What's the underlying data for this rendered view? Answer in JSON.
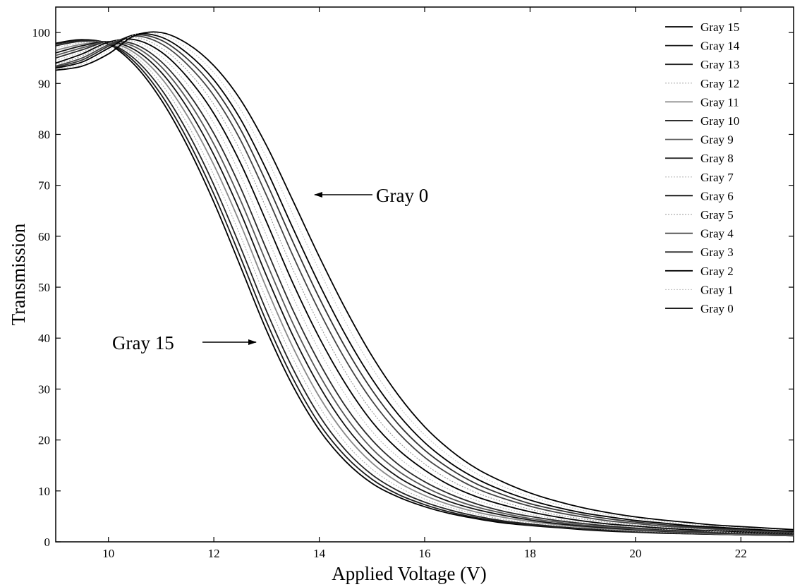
{
  "chart_data": {
    "type": "line",
    "title": "",
    "xlabel": "Applied Voltage (V)",
    "ylabel": "Transmission",
    "xlim": [
      9,
      23
    ],
    "ylim": [
      0,
      105
    ],
    "x_ticks": [
      10,
      12,
      14,
      16,
      18,
      20,
      22
    ],
    "y_ticks": [
      0,
      10,
      20,
      30,
      40,
      50,
      60,
      70,
      80,
      90,
      100
    ],
    "grid": false,
    "legend_position": "top-right",
    "x": [
      9,
      9.5,
      10,
      10.5,
      11,
      11.5,
      12,
      12.5,
      13,
      13.5,
      14,
      14.5,
      15,
      15.5,
      16,
      16.5,
      17,
      17.5,
      18,
      18.5,
      19,
      19.5,
      20,
      20.5,
      21,
      21.5,
      22,
      22.5,
      23
    ],
    "series": [
      {
        "name": "Gray 15",
        "color": "#000000",
        "values": [
          97.9,
          98.6,
          97.7,
          93.6,
          86.8,
          77.7,
          66.7,
          54.2,
          41.5,
          30.6,
          22.0,
          15.8,
          11.5,
          8.8,
          6.9,
          5.5,
          4.5,
          3.7,
          3.2,
          2.8,
          2.4,
          2.1,
          1.9,
          1.7,
          1.6,
          1.5,
          1.4,
          1.3,
          1.2
        ]
      },
      {
        "name": "Gray 14",
        "color": "#1a1a1a",
        "values": [
          97.7,
          98.5,
          97.8,
          94.2,
          87.8,
          79.0,
          68.3,
          56.0,
          43.2,
          32.1,
          23.2,
          16.8,
          12.3,
          9.3,
          7.3,
          5.8,
          4.7,
          3.9,
          3.3,
          2.9,
          2.5,
          2.2,
          2.0,
          1.8,
          1.6,
          1.5,
          1.4,
          1.3,
          1.2
        ]
      },
      {
        "name": "Gray 13",
        "color": "#222222",
        "values": [
          97.4,
          98.3,
          97.9,
          94.8,
          88.9,
          80.5,
          70.1,
          58.0,
          45.3,
          34.0,
          24.8,
          18.0,
          13.2,
          10.0,
          7.8,
          6.2,
          5.0,
          4.1,
          3.5,
          3.0,
          2.6,
          2.3,
          2.0,
          1.8,
          1.7,
          1.5,
          1.4,
          1.3,
          1.3
        ]
      },
      {
        "name": "Gray 12",
        "color": "#b0b0b0",
        "values": [
          97.0,
          98.0,
          98.0,
          95.4,
          90.0,
          82.0,
          72.0,
          60.2,
          47.5,
          36.0,
          26.6,
          19.4,
          14.3,
          10.8,
          8.4,
          6.7,
          5.4,
          4.4,
          3.7,
          3.2,
          2.8,
          2.4,
          2.1,
          1.9,
          1.7,
          1.6,
          1.5,
          1.4,
          1.3
        ]
      },
      {
        "name": "Gray 11",
        "color": "#888888",
        "values": [
          96.5,
          97.7,
          98.1,
          96.0,
          91.1,
          83.6,
          74.0,
          62.5,
          49.8,
          38.2,
          28.5,
          21.0,
          15.5,
          11.7,
          9.1,
          7.2,
          5.8,
          4.8,
          4.0,
          3.4,
          2.9,
          2.5,
          2.2,
          2.0,
          1.8,
          1.6,
          1.5,
          1.4,
          1.3
        ]
      },
      {
        "name": "Gray 10",
        "color": "#111111",
        "values": [
          96.0,
          97.4,
          98.2,
          96.6,
          92.2,
          85.2,
          76.0,
          64.8,
          52.2,
          40.5,
          30.6,
          22.7,
          16.8,
          12.7,
          9.9,
          7.8,
          6.3,
          5.2,
          4.3,
          3.6,
          3.1,
          2.7,
          2.4,
          2.1,
          1.9,
          1.7,
          1.6,
          1.5,
          1.4
        ]
      },
      {
        "name": "Gray 9",
        "color": "#555555",
        "values": [
          95.5,
          97.0,
          98.2,
          97.2,
          93.3,
          86.8,
          78.1,
          67.2,
          54.8,
          42.9,
          32.8,
          24.6,
          18.3,
          13.9,
          10.8,
          8.5,
          6.8,
          5.6,
          4.6,
          3.9,
          3.3,
          2.9,
          2.5,
          2.2,
          2.0,
          1.8,
          1.7,
          1.5,
          1.4
        ]
      },
      {
        "name": "Gray 8",
        "color": "#2a2a2a",
        "values": [
          95.0,
          96.6,
          98.2,
          97.7,
          94.3,
          88.3,
          80.2,
          69.7,
          57.4,
          45.5,
          35.2,
          26.6,
          20.0,
          15.2,
          11.8,
          9.3,
          7.4,
          6.0,
          5.0,
          4.2,
          3.6,
          3.1,
          2.7,
          2.4,
          2.1,
          1.9,
          1.8,
          1.6,
          1.5
        ]
      },
      {
        "name": "Gray 7",
        "color": "#bbbbbb",
        "values": [
          94.5,
          96.2,
          98.2,
          98.2,
          95.3,
          89.8,
          82.2,
          72.1,
          60.1,
          48.1,
          37.6,
          28.8,
          21.7,
          16.6,
          12.9,
          10.1,
          8.1,
          6.6,
          5.4,
          4.5,
          3.8,
          3.3,
          2.9,
          2.5,
          2.3,
          2.0,
          1.8,
          1.7,
          1.6
        ]
      },
      {
        "name": "Gray 6",
        "color": "#000000",
        "values": [
          94.0,
          95.8,
          98.1,
          98.6,
          96.2,
          91.2,
          84.1,
          74.5,
          62.8,
          50.8,
          40.1,
          31.0,
          23.6,
          18.1,
          14.1,
          11.0,
          8.8,
          7.2,
          5.9,
          4.9,
          4.1,
          3.5,
          3.1,
          2.7,
          2.4,
          2.2,
          2.0,
          1.8,
          1.7
        ]
      },
      {
        "name": "Gray 5",
        "color": "#999999",
        "values": [
          93.7,
          95.4,
          97.9,
          99.0,
          97.0,
          92.5,
          85.9,
          76.8,
          65.4,
          53.5,
          42.7,
          33.3,
          25.6,
          19.7,
          15.3,
          12.0,
          9.6,
          7.8,
          6.4,
          5.3,
          4.5,
          3.8,
          3.3,
          2.9,
          2.6,
          2.3,
          2.1,
          1.9,
          1.8
        ]
      },
      {
        "name": "Gray 4",
        "color": "#444444",
        "values": [
          93.4,
          95.0,
          97.6,
          99.3,
          97.8,
          93.7,
          87.6,
          79.0,
          68.0,
          56.2,
          45.3,
          35.7,
          27.7,
          21.4,
          16.6,
          13.1,
          10.4,
          8.5,
          7.0,
          5.8,
          4.9,
          4.1,
          3.6,
          3.1,
          2.8,
          2.5,
          2.2,
          2.0,
          1.9
        ]
      },
      {
        "name": "Gray 3",
        "color": "#333333",
        "values": [
          93.2,
          94.6,
          97.3,
          99.5,
          98.5,
          94.8,
          89.2,
          81.1,
          70.5,
          58.9,
          47.9,
          38.1,
          29.8,
          23.1,
          18.0,
          14.2,
          11.3,
          9.2,
          7.5,
          6.3,
          5.3,
          4.5,
          3.9,
          3.4,
          3.0,
          2.7,
          2.4,
          2.2,
          2.0
        ]
      },
      {
        "name": "Gray 2",
        "color": "#000000",
        "values": [
          93.0,
          94.2,
          96.9,
          99.6,
          99.1,
          95.9,
          90.7,
          83.1,
          73.0,
          61.6,
          50.6,
          40.6,
          32.0,
          25.0,
          19.5,
          15.4,
          12.3,
          10.0,
          8.2,
          6.8,
          5.7,
          4.9,
          4.2,
          3.7,
          3.2,
          2.9,
          2.6,
          2.3,
          2.1
        ]
      },
      {
        "name": "Gray 1",
        "color": "#c8c8c8",
        "values": [
          92.8,
          93.8,
          96.4,
          99.6,
          99.6,
          96.9,
          92.1,
          85.0,
          75.4,
          64.3,
          53.3,
          43.1,
          34.2,
          26.8,
          21.0,
          16.6,
          13.3,
          10.8,
          8.9,
          7.4,
          6.2,
          5.3,
          4.6,
          4.0,
          3.5,
          3.1,
          2.8,
          2.5,
          2.3
        ]
      },
      {
        "name": "Gray 0",
        "color": "#000000",
        "values": [
          92.6,
          93.4,
          95.8,
          99.4,
          100.0,
          97.8,
          93.5,
          86.9,
          77.8,
          67.0,
          56.0,
          45.7,
          36.5,
          28.8,
          22.6,
          17.9,
          14.3,
          11.7,
          9.6,
          8.0,
          6.7,
          5.7,
          4.9,
          4.3,
          3.8,
          3.3,
          3.0,
          2.7,
          2.4
        ]
      }
    ],
    "annotations": [
      {
        "text": "Gray 0",
        "points_to_series": "Gray 0"
      },
      {
        "text": "Gray 15",
        "points_to_series": "Gray 15"
      }
    ]
  }
}
